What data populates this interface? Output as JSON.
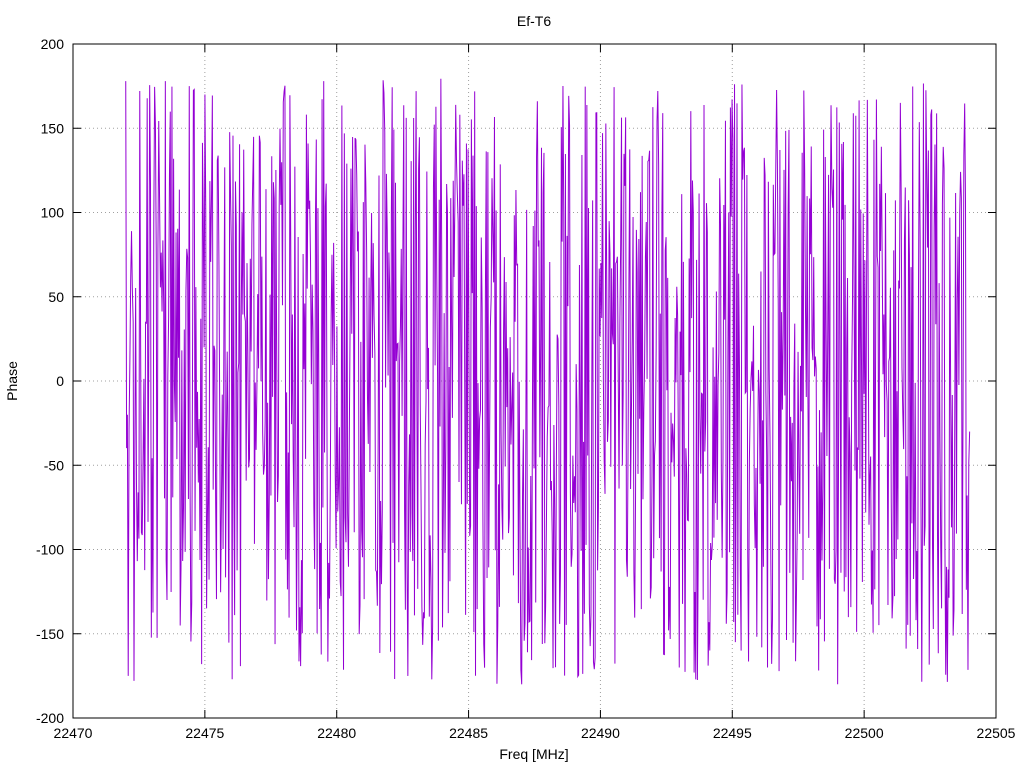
{
  "chart_data": {
    "type": "line",
    "title": "Ef-T6",
    "xlabel": "Freq [MHz]",
    "ylabel": "Phase",
    "xlim": [
      22470,
      22505
    ],
    "ylim": [
      -200,
      200
    ],
    "xticks": [
      22470,
      22475,
      22480,
      22485,
      22490,
      22495,
      22500,
      22505
    ],
    "yticks": [
      -200,
      -150,
      -100,
      -50,
      0,
      50,
      100,
      150,
      200
    ],
    "grid": true,
    "series": [
      {
        "color": "#9400d3",
        "x_start": 22472,
        "x_end": 22504,
        "points_count": 1024,
        "pattern": "pseudo-random phase values wrapping within [-180, 180]",
        "sample_points": [
          [
            22472.0,
            178
          ],
          [
            22472.1,
            -175
          ],
          [
            22472.2,
            60
          ],
          [
            22472.3,
            -178
          ],
          [
            22473.5,
            178
          ],
          [
            22474.4,
            175
          ],
          [
            22475.0,
            170
          ],
          [
            22479.5,
            178
          ],
          [
            22483.0,
            172
          ],
          [
            22487.0,
            -180
          ],
          [
            22493.0,
            -170
          ],
          [
            22499.0,
            -180
          ],
          [
            22504.0,
            -30
          ]
        ]
      }
    ]
  }
}
